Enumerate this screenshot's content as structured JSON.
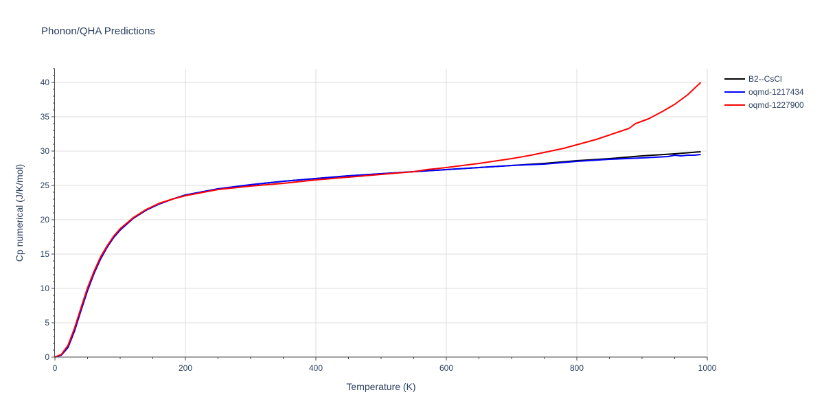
{
  "chart_data": {
    "type": "line",
    "title": "Phonon/QHA Predictions",
    "xlabel": "Temperature (K)",
    "ylabel": "Cp numerical (J/K/mol)",
    "xlim": [
      0,
      1000
    ],
    "ylim": [
      0,
      42
    ],
    "xticks": [
      0,
      200,
      400,
      600,
      800,
      1000
    ],
    "yticks": [
      0,
      5,
      10,
      15,
      20,
      25,
      30,
      35,
      40
    ],
    "grid": true,
    "legend_position": "top-right",
    "series": [
      {
        "name": "B2--CsCl",
        "color": "#000000",
        "x": [
          0,
          10,
          20,
          30,
          40,
          50,
          60,
          70,
          80,
          90,
          100,
          120,
          140,
          160,
          180,
          200,
          250,
          300,
          350,
          400,
          450,
          500,
          550,
          600,
          650,
          700,
          750,
          800,
          850,
          900,
          950,
          990
        ],
        "y": [
          0,
          0.3,
          1.4,
          3.8,
          6.8,
          9.7,
          12.2,
          14.3,
          16.0,
          17.4,
          18.5,
          20.2,
          21.4,
          22.3,
          23.0,
          23.6,
          24.5,
          25.1,
          25.6,
          26.0,
          26.4,
          26.7,
          27.0,
          27.3,
          27.6,
          27.9,
          28.2,
          28.6,
          28.9,
          29.3,
          29.6,
          29.9
        ]
      },
      {
        "name": "oqmd-1217434",
        "color": "#0000ff",
        "x": [
          0,
          10,
          20,
          30,
          40,
          50,
          60,
          70,
          80,
          90,
          100,
          120,
          140,
          160,
          180,
          200,
          250,
          300,
          350,
          400,
          450,
          500,
          550,
          600,
          650,
          700,
          750,
          800,
          850,
          900,
          940,
          950,
          960,
          970,
          980,
          990
        ],
        "y": [
          0,
          0.3,
          1.4,
          3.8,
          6.8,
          9.7,
          12.2,
          14.3,
          16.0,
          17.4,
          18.5,
          20.2,
          21.4,
          22.3,
          23.0,
          23.6,
          24.5,
          25.1,
          25.6,
          26.0,
          26.4,
          26.7,
          27.0,
          27.3,
          27.6,
          27.9,
          28.1,
          28.5,
          28.8,
          29.0,
          29.2,
          29.4,
          29.3,
          29.4,
          29.4,
          29.5
        ]
      },
      {
        "name": "oqmd-1227900",
        "color": "#ff0000",
        "x": [
          0,
          10,
          20,
          30,
          40,
          50,
          60,
          70,
          80,
          90,
          100,
          120,
          140,
          160,
          180,
          200,
          250,
          300,
          350,
          400,
          450,
          500,
          550,
          570,
          600,
          650,
          700,
          730,
          780,
          830,
          880,
          890,
          910,
          930,
          950,
          970,
          990
        ],
        "y": [
          0,
          0.4,
          1.7,
          4.2,
          7.2,
          10.1,
          12.5,
          14.6,
          16.2,
          17.6,
          18.7,
          20.3,
          21.5,
          22.4,
          23.0,
          23.5,
          24.4,
          24.9,
          25.3,
          25.8,
          26.2,
          26.6,
          27.0,
          27.3,
          27.6,
          28.2,
          28.9,
          29.4,
          30.4,
          31.7,
          33.3,
          34.0,
          34.7,
          35.7,
          36.8,
          38.2,
          40.0
        ]
      }
    ]
  }
}
